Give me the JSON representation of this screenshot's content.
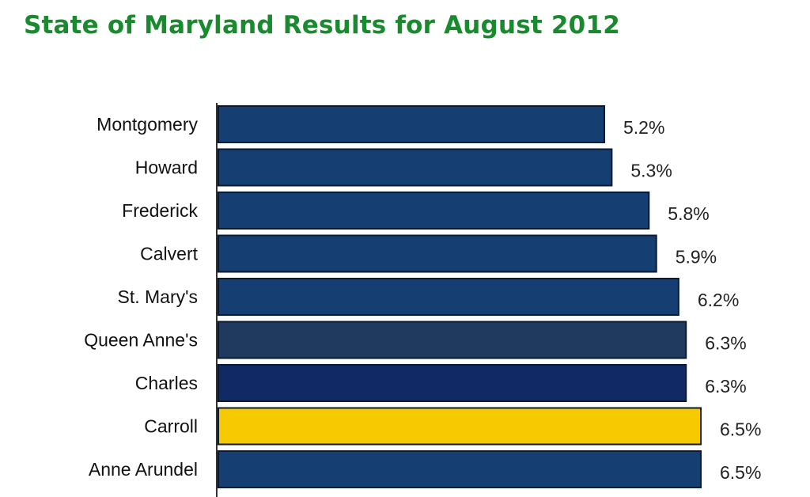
{
  "page": {
    "title": "State of Maryland Results for August 2012"
  },
  "chart_data": {
    "type": "bar",
    "orientation": "horizontal",
    "title": "State of Maryland Results for August 2012",
    "xlabel": "",
    "ylabel": "",
    "categories": [
      "Montgomery",
      "Howard",
      "Frederick",
      "Calvert",
      "St. Mary's",
      "Queen Anne's",
      "Charles",
      "Carroll",
      "Anne Arundel"
    ],
    "value_labels": [
      "5.2%",
      "5.3%",
      "5.8%",
      "5.9%",
      "6.2%",
      "6.3%",
      "6.3%",
      "6.5%",
      "6.5%"
    ],
    "series": [
      {
        "values": [
          5.2,
          5.3,
          5.8,
          5.9,
          6.2,
          6.3,
          6.3,
          6.5,
          6.5
        ],
        "colors": [
          "#153f73",
          "#153f73",
          "#153f73",
          "#153f73",
          "#153f73",
          "#20395e",
          "#112a66",
          "#f7c900",
          "#153f73"
        ]
      }
    ],
    "highlight": "Carroll",
    "xlim": [
      0,
      6.5
    ],
    "grid": false,
    "legend": "none"
  }
}
